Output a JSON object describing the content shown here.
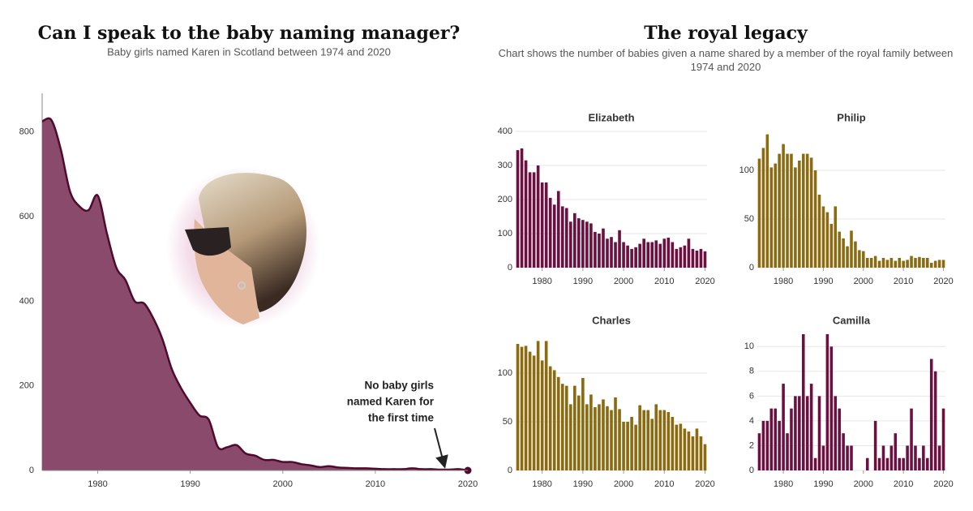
{
  "royal_title": "The royal legacy",
  "royal_subtitle": "Chart shows the number of babies given a name shared by a member of the royal family between 1974 and 2020",
  "chart_data": [
    {
      "type": "area",
      "title": "Can I speak to the baby naming manager?",
      "subtitle": "Baby girls named Karen in Scotland between 1974 and 2020",
      "annotation": [
        "No baby girls",
        "named Karen for",
        "the first time"
      ],
      "x": [
        1974,
        1975,
        1976,
        1977,
        1978,
        1979,
        1980,
        1981,
        1982,
        1983,
        1984,
        1985,
        1986,
        1987,
        1988,
        1989,
        1990,
        1991,
        1992,
        1993,
        1994,
        1995,
        1996,
        1997,
        1998,
        1999,
        2000,
        2001,
        2002,
        2003,
        2004,
        2005,
        2006,
        2007,
        2008,
        2009,
        2010,
        2011,
        2012,
        2013,
        2014,
        2015,
        2016,
        2017,
        2018,
        2019,
        2020
      ],
      "values": [
        825,
        828,
        760,
        660,
        625,
        615,
        650,
        560,
        480,
        450,
        400,
        395,
        360,
        310,
        240,
        195,
        160,
        130,
        120,
        55,
        55,
        60,
        40,
        35,
        25,
        25,
        20,
        20,
        15,
        12,
        8,
        10,
        7,
        6,
        5,
        5,
        4,
        3,
        3,
        3,
        5,
        3,
        3,
        2,
        2,
        3,
        0
      ],
      "color": "#8a4a6b",
      "line_color": "#4f0b2e",
      "xlim": [
        1974,
        2020
      ],
      "ylim": [
        0,
        880
      ],
      "xticks": [
        1980,
        1990,
        2000,
        2010,
        2020
      ],
      "yticks": [
        0,
        200,
        400,
        600,
        800
      ],
      "grid": false
    },
    {
      "type": "bar",
      "title": "Elizabeth",
      "x": [
        1974,
        1975,
        1976,
        1977,
        1978,
        1979,
        1980,
        1981,
        1982,
        1983,
        1984,
        1985,
        1986,
        1987,
        1988,
        1989,
        1990,
        1991,
        1992,
        1993,
        1994,
        1995,
        1996,
        1997,
        1998,
        1999,
        2000,
        2001,
        2002,
        2003,
        2004,
        2005,
        2006,
        2007,
        2008,
        2009,
        2010,
        2011,
        2012,
        2013,
        2014,
        2015,
        2016,
        2017,
        2018,
        2019,
        2020
      ],
      "values": [
        345,
        350,
        315,
        280,
        280,
        300,
        250,
        250,
        205,
        185,
        225,
        180,
        175,
        135,
        160,
        145,
        140,
        135,
        130,
        105,
        100,
        115,
        85,
        90,
        75,
        110,
        75,
        65,
        55,
        60,
        70,
        85,
        75,
        75,
        80,
        70,
        85,
        88,
        75,
        55,
        60,
        65,
        85,
        55,
        50,
        55,
        48
      ],
      "color": "#6b1040",
      "xlim": [
        1973.5,
        2020.5
      ],
      "ylim": [
        0,
        400
      ],
      "xticks": [
        1980,
        1990,
        2000,
        2010,
        2020
      ],
      "yticks": [
        0,
        100,
        200,
        300,
        400
      ],
      "grid": true
    },
    {
      "type": "bar",
      "title": "Philip",
      "x": [
        1974,
        1975,
        1976,
        1977,
        1978,
        1979,
        1980,
        1981,
        1982,
        1983,
        1984,
        1985,
        1986,
        1987,
        1988,
        1989,
        1990,
        1991,
        1992,
        1993,
        1994,
        1995,
        1996,
        1997,
        1998,
        1999,
        2000,
        2001,
        2002,
        2003,
        2004,
        2005,
        2006,
        2007,
        2008,
        2009,
        2010,
        2011,
        2012,
        2013,
        2014,
        2015,
        2016,
        2017,
        2018,
        2019,
        2020
      ],
      "values": [
        112,
        123,
        137,
        103,
        107,
        117,
        127,
        117,
        117,
        103,
        110,
        117,
        117,
        113,
        100,
        75,
        63,
        57,
        45,
        63,
        37,
        30,
        22,
        38,
        27,
        18,
        17,
        10,
        10,
        12,
        7,
        10,
        8,
        10,
        7,
        10,
        7,
        8,
        12,
        10,
        11,
        10,
        10,
        5,
        7,
        8,
        8
      ],
      "color": "#8b6a10",
      "xlim": [
        1973.5,
        2020.5
      ],
      "ylim": [
        0,
        140
      ],
      "xticks": [
        1980,
        1990,
        2000,
        2010,
        2020
      ],
      "yticks": [
        0,
        50,
        100
      ],
      "grid": true
    },
    {
      "type": "bar",
      "title": "Charles",
      "x": [
        1974,
        1975,
        1976,
        1977,
        1978,
        1979,
        1980,
        1981,
        1982,
        1983,
        1984,
        1985,
        1986,
        1987,
        1988,
        1989,
        1990,
        1991,
        1992,
        1993,
        1994,
        1995,
        1996,
        1997,
        1998,
        1999,
        2000,
        2001,
        2002,
        2003,
        2004,
        2005,
        2006,
        2007,
        2008,
        2009,
        2010,
        2011,
        2012,
        2013,
        2014,
        2015,
        2016,
        2017,
        2018,
        2019,
        2020
      ],
      "values": [
        130,
        127,
        128,
        122,
        118,
        133,
        113,
        133,
        107,
        103,
        96,
        89,
        87,
        68,
        87,
        77,
        95,
        68,
        78,
        65,
        68,
        73,
        66,
        62,
        75,
        63,
        50,
        50,
        55,
        47,
        67,
        62,
        62,
        53,
        68,
        62,
        62,
        60,
        55,
        47,
        48,
        43,
        40,
        35,
        43,
        35,
        27
      ],
      "color": "#8b6a10",
      "xlim": [
        1973.5,
        2020.5
      ],
      "ylim": [
        0,
        140
      ],
      "xticks": [
        1980,
        1990,
        2000,
        2010,
        2020
      ],
      "yticks": [
        0,
        50,
        100
      ],
      "grid": true
    },
    {
      "type": "bar",
      "title": "Camilla",
      "x": [
        1974,
        1975,
        1976,
        1977,
        1978,
        1979,
        1980,
        1981,
        1982,
        1983,
        1984,
        1985,
        1986,
        1987,
        1988,
        1989,
        1990,
        1991,
        1992,
        1993,
        1994,
        1995,
        1996,
        1997,
        1998,
        1999,
        2000,
        2001,
        2002,
        2003,
        2004,
        2005,
        2006,
        2007,
        2008,
        2009,
        2010,
        2011,
        2012,
        2013,
        2014,
        2015,
        2016,
        2017,
        2018,
        2019,
        2020
      ],
      "values": [
        3,
        4,
        4,
        5,
        5,
        4,
        7,
        3,
        5,
        6,
        6,
        11,
        6,
        7,
        1,
        6,
        2,
        11,
        10,
        6,
        5,
        3,
        2,
        2,
        0,
        0,
        0,
        1,
        0,
        4,
        1,
        2,
        1,
        2,
        3,
        1,
        1,
        2,
        5,
        2,
        1,
        2,
        1,
        9,
        8,
        2,
        5
      ],
      "color": "#6b1040",
      "xlim": [
        1973.5,
        2020.5
      ],
      "ylim": [
        0,
        11
      ],
      "xticks": [
        1980,
        1990,
        2000,
        2010,
        2020
      ],
      "yticks": [
        0,
        2,
        4,
        6,
        8,
        10
      ],
      "grid": true
    }
  ]
}
